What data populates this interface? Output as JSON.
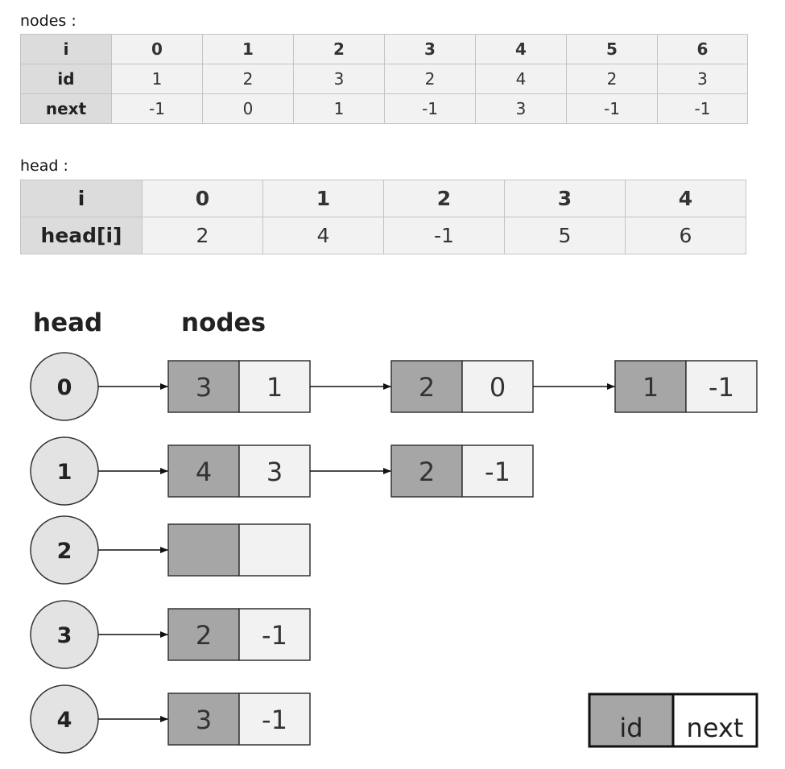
{
  "nodes_table": {
    "caption": "nodes :",
    "row_labels": [
      "i",
      "id",
      "next"
    ],
    "i": [
      "0",
      "1",
      "2",
      "3",
      "4",
      "5",
      "6"
    ],
    "id": [
      "1",
      "2",
      "3",
      "2",
      "4",
      "2",
      "3"
    ],
    "next": [
      "-1",
      "0",
      "1",
      "-1",
      "3",
      "-1",
      "-1"
    ]
  },
  "head_table": {
    "caption": "head :",
    "row_labels": [
      "i",
      "head[i]"
    ],
    "i": [
      "0",
      "1",
      "2",
      "3",
      "4"
    ],
    "values": [
      "2",
      "4",
      "-1",
      "5",
      "6"
    ]
  },
  "diagram": {
    "head_label": "head",
    "nodes_label": "nodes",
    "lists": [
      {
        "head": "0",
        "nodes": [
          {
            "id": "3",
            "next": "1"
          },
          {
            "id": "2",
            "next": "0"
          },
          {
            "id": "1",
            "next": "-1"
          }
        ]
      },
      {
        "head": "1",
        "nodes": [
          {
            "id": "4",
            "next": "3"
          },
          {
            "id": "2",
            "next": "-1"
          }
        ]
      },
      {
        "head": "2",
        "nodes": [
          {
            "id": "",
            "next": ""
          }
        ]
      },
      {
        "head": "3",
        "nodes": [
          {
            "id": "2",
            "next": "-1"
          }
        ]
      },
      {
        "head": "4",
        "nodes": [
          {
            "id": "3",
            "next": "-1"
          }
        ]
      }
    ],
    "legend": {
      "id_label": "id",
      "next_label": "next"
    },
    "colors": {
      "id_fill": "#a6a6a6",
      "next_fill": "#f2f2f2",
      "circle_fill": "#e3e3e3",
      "stroke": "#333333"
    }
  }
}
